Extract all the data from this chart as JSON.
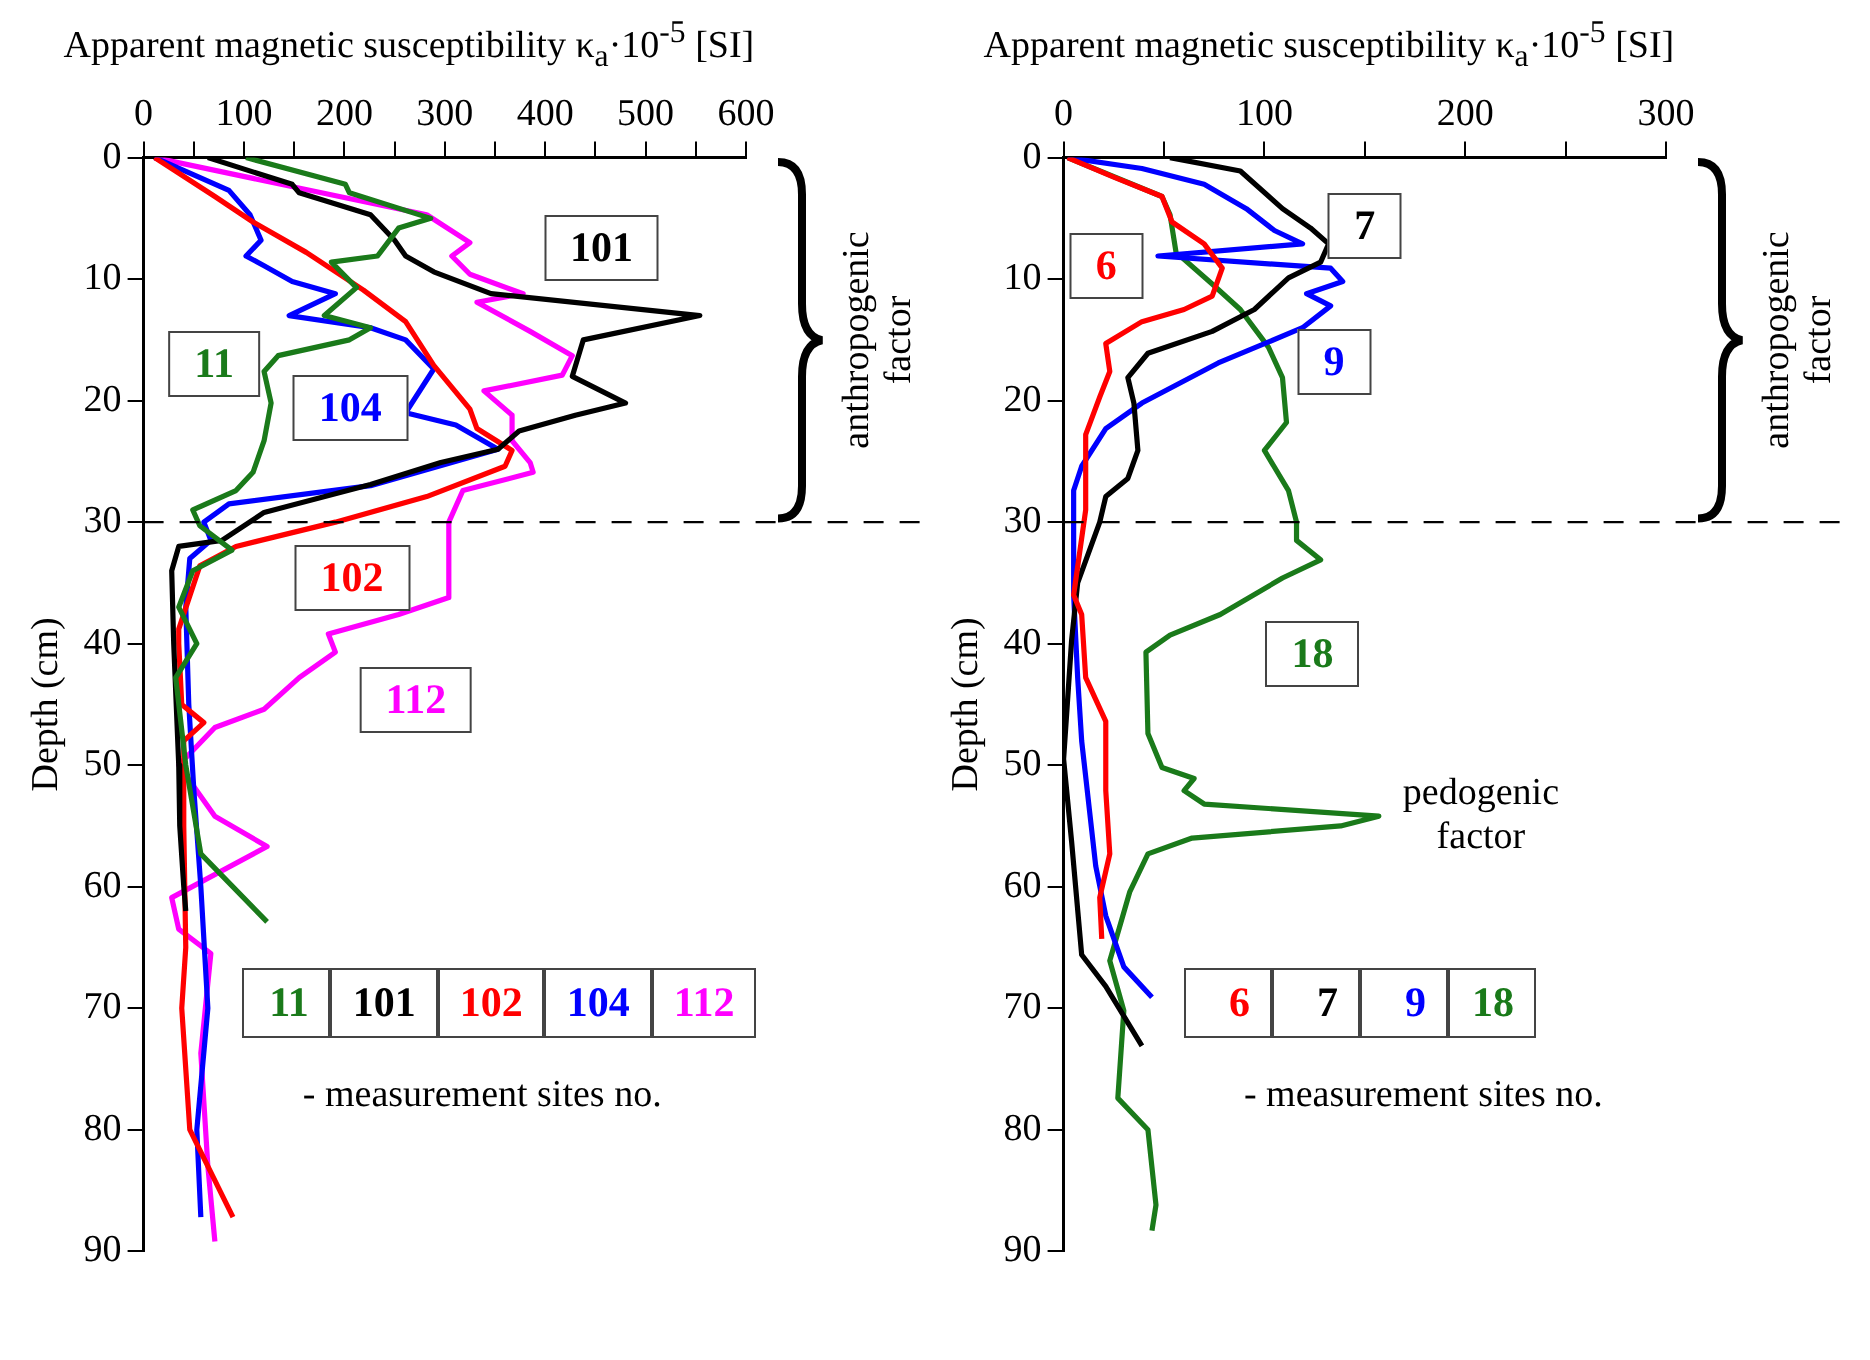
{
  "chart_data": [
    {
      "type": "line",
      "xlabel": "Apparent magnetic susceptibility κ$_{a}$·10$^{-5}$ [SI]",
      "ylabel": "Depth (cm)",
      "xlim": [
        0,
        600
      ],
      "ylim": [
        90,
        0
      ],
      "xticks": [
        0,
        {
          "value": 50,
          "label": null
        },
        100,
        {
          "value": 150,
          "label": null
        },
        200,
        {
          "value": 250,
          "label": null
        },
        300,
        {
          "value": 350,
          "label": null
        },
        400,
        {
          "value": 450,
          "label": null
        },
        500,
        {
          "value": 550,
          "label": null
        },
        600
      ],
      "yticks": [
        0,
        10,
        20,
        30,
        40,
        50,
        60,
        70,
        80,
        90
      ],
      "grid": false,
      "marker": "none",
      "line_style": "solid",
      "series": [
        {
          "name": "11",
          "color": "#1a7a1a",
          "x": [
            102,
            201,
            205,
            286,
            254,
            233,
            187,
            212,
            180,
            226,
            205,
            134,
            120,
            127,
            120,
            109,
            92,
            49,
            56,
            88,
            49,
            35,
            53,
            32,
            42,
            57,
            123
          ],
          "values": [
            0,
            2.2,
            2.9,
            5,
            5.8,
            8.1,
            8.6,
            10.7,
            13,
            14,
            15,
            16.3,
            17.6,
            20.2,
            23.3,
            25.9,
            27.4,
            29,
            30.3,
            32.3,
            34,
            37,
            40,
            42.8,
            50,
            57.3,
            62.9
          ]
        },
        {
          "name": "101",
          "color": "#000000",
          "x": [
            64,
            148,
            155,
            226,
            250,
            261,
            289,
            346,
            554,
            438,
            427,
            480,
            430,
            374,
            353,
            296,
            226,
            120,
            78,
            35,
            28,
            30,
            35,
            36,
            40,
            42
          ],
          "values": [
            0,
            2.2,
            2.9,
            4.7,
            6.8,
            8.1,
            9.4,
            11.2,
            13,
            15,
            18,
            20.2,
            21.2,
            22.5,
            24,
            25.1,
            26.9,
            29.2,
            31.5,
            32,
            34,
            40,
            50,
            55,
            60,
            62
          ]
        },
        {
          "name": "102",
          "color": "#ff0000",
          "x": [
            11,
            71,
            109,
            162,
            219,
            261,
            289,
            325,
            332,
            367,
            360,
            282,
            191,
            92,
            56,
            35,
            35,
            38,
            60,
            40,
            40,
            42,
            38,
            46,
            89
          ],
          "values": [
            0,
            3.2,
            5.3,
            7.8,
            10.9,
            13.5,
            17.1,
            20.7,
            22.3,
            24.1,
            25.4,
            27.9,
            30,
            32,
            33.6,
            38.8,
            40,
            45,
            46.5,
            48,
            55,
            65,
            70,
            80,
            87.2
          ]
        },
        {
          "name": "104",
          "color": "#0000ff",
          "x": [
            11,
            85,
            106,
            117,
            102,
            120,
            148,
            191,
            145,
            226,
            261,
            289,
            261,
            311,
            353,
            226,
            85,
            60,
            67,
            46,
            42,
            45,
            50,
            57,
            64,
            53,
            57
          ],
          "values": [
            0,
            2.7,
            4.7,
            6.8,
            8.1,
            8.9,
            10.2,
            11.2,
            13,
            14,
            15,
            17.4,
            21,
            22,
            24,
            27,
            28.5,
            30,
            31.5,
            33,
            37,
            45,
            52,
            60,
            70,
            80,
            87.2
          ]
        },
        {
          "name": "112",
          "color": "#ff00ff",
          "x": [
            11,
            120,
            282,
            325,
            307,
            325,
            378,
            332,
            385,
            427,
            417,
            339,
            367,
            367,
            385,
            388,
            318,
            304,
            304,
            254,
            184,
            191,
            155,
            120,
            71,
            35,
            71,
            123,
            28,
            35,
            67,
            57,
            64,
            71
          ],
          "values": [
            0,
            1.9,
            4.7,
            7,
            8.1,
            9.6,
            11.2,
            11.9,
            14.3,
            16.3,
            17.9,
            19.2,
            21.2,
            23.3,
            25.1,
            25.9,
            27.4,
            30,
            36.2,
            37.6,
            39.2,
            40.7,
            42.8,
            45.4,
            46.9,
            50,
            54.2,
            56.7,
            60.9,
            63.5,
            65.5,
            73.7,
            83,
            89.2
          ]
        }
      ],
      "ref_lines": [
        {
          "axis": "y",
          "value": 30,
          "line_style": "dashed",
          "color": "#000000"
        }
      ],
      "annotations": [
        "11",
        "101",
        "102",
        "104",
        "112",
        "- measurement sites no.",
        "anthropogenic factor"
      ]
    },
    {
      "type": "line",
      "xlabel": "Apparent magnetic susceptibility κ$_{a}$·10$^{-5}$ [SI]",
      "ylabel": "Depth (cm)",
      "xlim": [
        0,
        300
      ],
      "ylim": [
        90,
        0
      ],
      "xticks": [
        0,
        {
          "value": 50,
          "label": null
        },
        100,
        {
          "value": 150,
          "label": null
        },
        200,
        {
          "value": 250,
          "label": null
        },
        300
      ],
      "yticks": [
        0,
        10,
        20,
        30,
        40,
        50,
        60,
        70,
        80,
        90
      ],
      "grid": false,
      "marker": "none",
      "line_style": "solid",
      "series": [
        {
          "name": "6",
          "color": "#ff0000",
          "x": [
            2,
            25,
            49,
            54,
            70,
            79,
            74,
            60,
            39,
            21,
            23,
            18,
            11,
            11,
            5,
            9,
            11,
            21,
            21,
            23,
            18,
            19
          ],
          "values": [
            0,
            1.6,
            3.2,
            5.3,
            7.1,
            9.1,
            11.4,
            12.5,
            13.5,
            15.3,
            17.6,
            19.7,
            22.8,
            29,
            36,
            37.6,
            42.8,
            46.4,
            52.1,
            57.3,
            60.9,
            64.3
          ]
        },
        {
          "name": "7",
          "color": "#000000",
          "x": [
            53,
            88,
            109,
            123,
            132,
            128,
            112,
            95,
            74,
            42,
            32,
            35,
            37,
            32,
            21,
            18,
            7,
            4,
            0,
            4,
            9,
            21,
            39
          ],
          "values": [
            0,
            1.1,
            4.2,
            5.8,
            7.1,
            8.6,
            9.9,
            12.5,
            14.3,
            16.1,
            18.1,
            20.2,
            24.1,
            26.4,
            27.9,
            30,
            35,
            39.7,
            49.5,
            56.3,
            65.6,
            68.2,
            73.1
          ]
        },
        {
          "name": "9",
          "color": "#0000ff",
          "x": [
            2,
            39,
            70,
            91,
            105,
            119,
            47,
            133,
            139,
            121,
            133,
            119,
            77,
            39,
            21,
            9,
            5,
            5,
            7,
            9,
            16,
            21,
            30,
            44
          ],
          "values": [
            0,
            0.9,
            2.2,
            4.2,
            6,
            7.1,
            8.1,
            9.1,
            10.2,
            11.2,
            12.2,
            14,
            16.9,
            20.2,
            22.3,
            25.4,
            27.4,
            36,
            42.8,
            48,
            58.3,
            62.4,
            66.6,
            69.1
          ]
        },
        {
          "name": "18",
          "color": "#1a7a1a",
          "x": [
            2,
            49,
            53,
            56,
            74,
            88,
            102,
            109,
            111,
            100,
            112,
            116,
            116,
            128,
            109,
            78,
            53,
            41,
            42,
            49,
            65,
            60,
            70,
            157,
            138,
            64,
            42,
            33,
            23,
            30,
            27,
            42,
            46,
            44
          ],
          "values": [
            0,
            3.2,
            4.7,
            7.8,
            10.4,
            12.5,
            15.6,
            18.1,
            21.8,
            24.1,
            27.4,
            30,
            31.5,
            33.1,
            34.6,
            37.6,
            39.3,
            40.7,
            47.4,
            50.2,
            51.1,
            52.1,
            53.2,
            54.2,
            55,
            56,
            57.3,
            60.4,
            66.1,
            70.2,
            77.4,
            80,
            86.2,
            88.3
          ]
        }
      ],
      "ref_lines": [
        {
          "axis": "y",
          "value": 30,
          "line_style": "dashed",
          "color": "#000000"
        }
      ],
      "annotations": [
        "6",
        "7",
        "9",
        "18",
        "- measurement sites no.",
        "anthropogenic factor",
        {
          "text": "pedogenic factor",
          "x": 157,
          "y": 54
        }
      ]
    }
  ]
}
